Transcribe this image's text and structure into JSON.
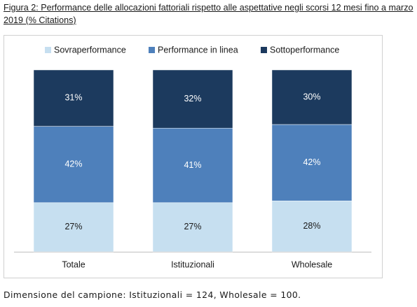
{
  "chart_data": {
    "type": "stacked-bar",
    "title": "Figura 2: Performance delle allocazioni fattoriali rispetto alle aspettative negli scorsi 12 mesi fino a marzo 2019  (% Citations)",
    "categories": [
      "Totale",
      "Istituzionali",
      "Wholesale"
    ],
    "series": [
      {
        "name": "Sovraperformance",
        "color": "#c6dff0",
        "values": [
          27,
          27,
          28
        ],
        "value_labels": [
          "27%",
          "27%",
          "28%"
        ]
      },
      {
        "name": "Performance in linea",
        "color": "#4e80bb",
        "values": [
          42,
          41,
          42
        ],
        "value_labels": [
          "42%",
          "41%",
          "42%"
        ]
      },
      {
        "name": "Sottoperformance",
        "color": "#1c3a5e",
        "values": [
          31,
          32,
          30
        ],
        "value_labels": [
          "31%",
          "32%",
          "30%"
        ]
      }
    ],
    "note": "Dimensione del campione: Istituzionali = 124, Wholesale = 100."
  }
}
